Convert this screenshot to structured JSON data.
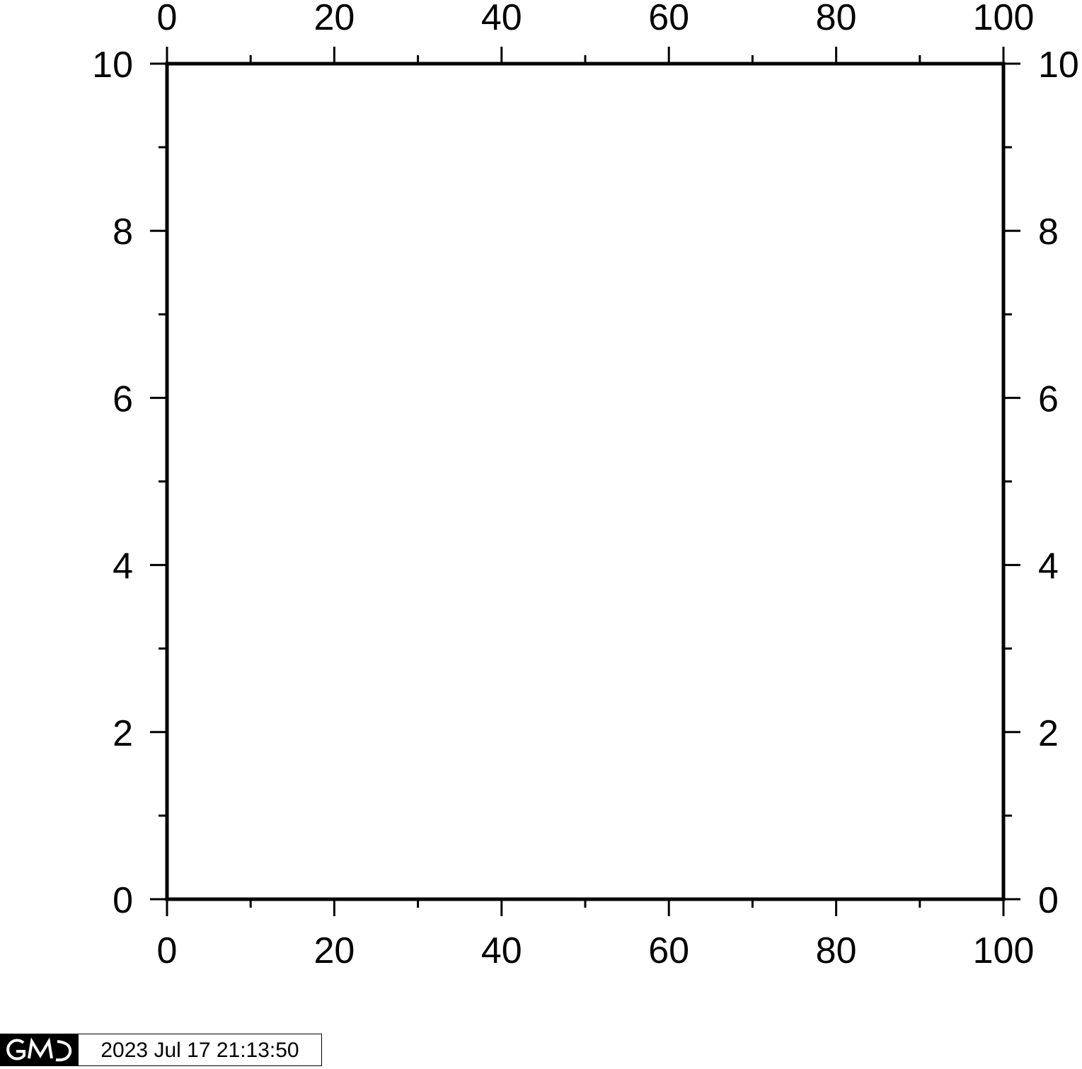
{
  "chart_data": {
    "type": "scatter",
    "title": "",
    "xlabel": "",
    "ylabel": "",
    "xlim": [
      0,
      100
    ],
    "ylim": [
      0,
      10
    ],
    "x_ticks": [
      "0",
      "20",
      "40",
      "60",
      "80",
      "100"
    ],
    "y_ticks": [
      "0",
      "2",
      "4",
      "6",
      "8",
      "10"
    ],
    "x_major_step": 20,
    "x_minor_step": 10,
    "y_major_step": 2,
    "y_minor_step": 1,
    "frame_sides": [
      "left",
      "right",
      "top",
      "bottom"
    ],
    "x_labels_sides": [
      "top",
      "bottom"
    ],
    "y_labels_sides": [
      "left",
      "right"
    ],
    "grid": false,
    "series": []
  },
  "stamp": {
    "logo_text": "GMT",
    "timestamp": "2023 Jul 17 21:13:50"
  },
  "colors": {
    "frame": "#000000",
    "background": "#ffffff"
  }
}
